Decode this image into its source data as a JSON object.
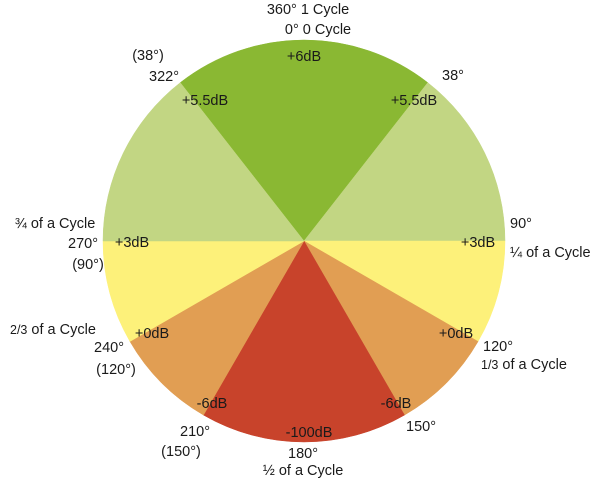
{
  "colors": {
    "green_dark": "#8ab833",
    "green_light": "#c2d683",
    "yellow": "#fdf17a",
    "orange": "#e19e53",
    "red": "#c8432b"
  },
  "wedges": [
    {
      "name": "wedge-top-green",
      "fill": "#8ab833",
      "from": 322,
      "to": 38
    },
    {
      "name": "wedge-right-light-green",
      "fill": "#c2d683",
      "from": 38,
      "to": 90
    },
    {
      "name": "wedge-right-yellow",
      "fill": "#fdf17a",
      "from": 90,
      "to": 120
    },
    {
      "name": "wedge-right-orange",
      "fill": "#e19e53",
      "from": 120,
      "to": 150
    },
    {
      "name": "wedge-bottom-red",
      "fill": "#c8432b",
      "from": 150,
      "to": 210
    },
    {
      "name": "wedge-left-orange",
      "fill": "#e19e53",
      "from": 210,
      "to": 240
    },
    {
      "name": "wedge-left-yellow",
      "fill": "#fdf17a",
      "from": 240,
      "to": 270
    },
    {
      "name": "wedge-left-light-green",
      "fill": "#c2d683",
      "from": 270,
      "to": 322
    }
  ],
  "labels": {
    "top_line1": "360° 1 Cycle",
    "top_line2": "0° 0 Cycle",
    "top_db": "+6dB",
    "upper_left_paren": "(38°)",
    "upper_left_deg": "322°",
    "upper_left_db": "+5.5dB",
    "upper_right_deg": "38°",
    "upper_right_db": "+5.5dB",
    "left_cycle": "¾ of a Cycle",
    "left_deg": "270°",
    "left_db": "+3dB",
    "left_paren": "(90°)",
    "right_deg": "90°",
    "right_db": "+3dB",
    "right_cycle": "¼ of a Cycle",
    "left_third_prefix": "2/3",
    "left_third_suffix": " of a Cycle",
    "left_third_deg": "240°",
    "left_third_db": "+0dB",
    "left_third_paren": "(120°)",
    "right_third_db": "+0dB",
    "right_third_deg": "120°",
    "right_third_prefix": "1/3",
    "right_third_suffix": " of a Cycle",
    "lower_left_db": "-6dB",
    "lower_left_deg": "210°",
    "lower_left_paren": "(150°)",
    "lower_right_db": "-6dB",
    "lower_right_deg": "150°",
    "bottom_db": "-100dB",
    "bottom_deg": "180°",
    "bottom_cycle": "½ of a Cycle"
  }
}
